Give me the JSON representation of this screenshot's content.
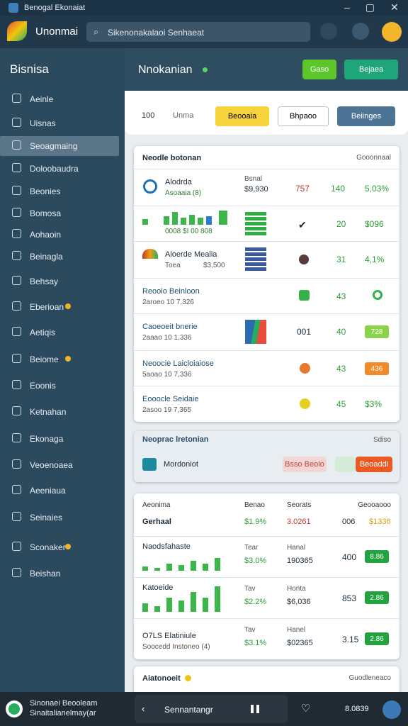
{
  "window": {
    "title": "Benogal Ekonaiat"
  },
  "header": {
    "app_name": "Unonmai",
    "search": "Sikenonakalaoi Senhaeat"
  },
  "sidebar": {
    "title": "Bisnisa",
    "items": [
      "Aeinle",
      "Uisnas",
      "Seoagmaing",
      "Doloobaudra",
      "Beonies",
      "Bomosa",
      "Aohaoin",
      "Beinagla",
      "Behsay",
      "Eberioan",
      "Aetiqis",
      "Beiome",
      "Eoonis",
      "Ketnahan",
      "Ekonaga",
      "Veoenoaea",
      "Aeeniaua",
      "Seinaies",
      "Sconaker",
      "Beishan"
    ]
  },
  "main": {
    "title": "Nnokanian",
    "buttons": [
      "Gaso",
      "Bejaea"
    ]
  },
  "filter": {
    "count": "100",
    "label": "Unma",
    "buttons": [
      "Beooaia",
      "Bhpaoo",
      "Beiinges"
    ]
  },
  "card1": {
    "title": "Neodle botonan",
    "right": "Gooonnaal",
    "rows": [
      {
        "name": "Alodrda",
        "sub": "Asoaaia (8)",
        "col_label": "Bsnal",
        "col_value": "$9,930",
        "a": "757",
        "b": "140",
        "c": "5,03%"
      },
      {
        "sub": "0008 $I 00 808",
        "b": "20",
        "c": "$096"
      },
      {
        "name": "Aloerde Mealia",
        "sub": "Toea",
        "col_value": "$3,500",
        "b": "31",
        "c": "4,1%"
      },
      {
        "name": "Reooio Beinloon",
        "sub": "2aroeo  10  7,326",
        "b": "43"
      },
      {
        "name": "Caoeoeit bnerie",
        "sub": "2aaao  10  1,336",
        "a": "001",
        "b": "40",
        "c": "728"
      },
      {
        "name": "Neoocie Laicloiaiose",
        "sub": "5aoao  10  7,336",
        "b": "43",
        "c": "436"
      },
      {
        "name": "Eooocle Seidaie",
        "sub": "2asoo  19  7,365",
        "b": "45",
        "c": "$3%"
      }
    ]
  },
  "card2": {
    "title": "Neoprac lretonian",
    "right": "Sdiso",
    "item": "Mordoniot",
    "buttons": [
      "Bsso Beoio",
      "Beoaddi"
    ]
  },
  "card3": {
    "headers": [
      "Aeonima",
      "Benao",
      "Seorats",
      "Geooaooo"
    ],
    "summary": [
      "Gerhaal",
      "$1.9%",
      "3.0261",
      "006",
      "$1336"
    ],
    "rows": [
      {
        "name": "Naodsfahaste",
        "tag": "Tear",
        "pct": "$3.0%",
        "label": "Hanal",
        "value": "190365",
        "count": "400",
        "badge": "8.86"
      },
      {
        "name": "Katoeide",
        "tag": "Tav",
        "pct": "$2.2%",
        "label": "Honta",
        "value": "$6,036",
        "count": "853",
        "badge": "2.86"
      },
      {
        "name": "O7LS Elatiniule",
        "sub": "Soocedd Instoneo (4)",
        "tag": "Tav",
        "pct": "$3.1%",
        "label": "Hanel",
        "value": "$02365",
        "count": "3.15",
        "badge": "2.86"
      }
    ]
  },
  "card4": {
    "title": "Aiatonoeit",
    "right": "Guodleneaco"
  },
  "footer": {
    "line1": "Sinonaei Beooleam",
    "line2": "Sinaitalianelmay(ar",
    "track": "Sennantangr",
    "time": "8.0839"
  }
}
